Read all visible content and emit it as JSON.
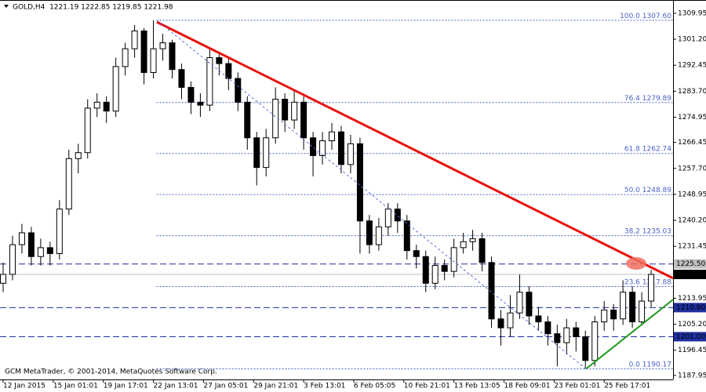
{
  "chart_data": {
    "type": "candlestick",
    "header": "GOLD,H4  1221.19 1222.85 1219.85 1221.98",
    "footer": "GCM MetaTrader, © 2001-2014, MetaQuotes Software Corp.",
    "xlim": [
      -1,
      214
    ],
    "ylim": [
      1186.6,
      1313.1
    ],
    "xticks": [
      {
        "value": 0,
        "label": "12 Jan 2015"
      },
      {
        "value": 16,
        "label": "15 Jan 01:01"
      },
      {
        "value": 32,
        "label": "19 Jan 17:01"
      },
      {
        "value": 48,
        "label": "22 Jan 13:01"
      },
      {
        "value": 64,
        "label": "27 Jan 05:01"
      },
      {
        "value": 80,
        "label": "29 Jan 21:01"
      },
      {
        "value": 96,
        "label": "3 Feb 13:01"
      },
      {
        "value": 112,
        "label": "6 Feb 05:05"
      },
      {
        "value": 128,
        "label": "10 Feb 21:01"
      },
      {
        "value": 144,
        "label": "13 Feb 13:05"
      },
      {
        "value": 160,
        "label": "18 Feb 09:01"
      },
      {
        "value": 176,
        "label": "23 Feb 01:01"
      },
      {
        "value": 192,
        "label": "25 Feb 17:01"
      }
    ],
    "yticks": [
      1309.95,
      {
        "value": 1301.2,
        "label": "1301.20"
      },
      1292.45,
      {
        "value": 1283.7,
        "label": "1283.70"
      },
      1274.95,
      1266.45,
      {
        "value": 1257.7,
        "label": "1257.70"
      },
      1248.95,
      {
        "value": 1240.2,
        "label": "1240.20"
      },
      1231.45,
      1213.95,
      {
        "value": 1205.2,
        "label": "1205.20"
      },
      1196.45,
      1187.95
    ],
    "bull_color": "#ffffff",
    "bear_color": "#000000",
    "x": [
      0,
      3,
      6,
      9,
      12,
      15,
      18,
      21,
      24,
      27,
      30,
      33,
      36,
      39,
      42,
      45,
      48,
      51,
      54,
      57,
      60,
      63,
      66,
      69,
      72,
      75,
      78,
      81,
      84,
      87,
      90,
      93,
      96,
      99,
      102,
      105,
      108,
      111,
      114,
      117,
      120,
      123,
      126,
      129,
      132,
      135,
      138,
      141,
      144,
      147,
      150,
      153,
      156,
      159,
      162,
      165,
      168,
      171,
      174,
      177,
      180,
      183,
      186,
      189,
      192,
      195,
      198,
      201,
      204,
      207
    ],
    "open": [
      1219,
      1222,
      1232,
      1236,
      1228,
      1231,
      1229,
      1244,
      1261,
      1263,
      1278,
      1280,
      1277,
      1292,
      1298,
      1304,
      1290,
      1298,
      1300,
      1291,
      1285,
      1280,
      1279,
      1295,
      1293,
      1288,
      1280,
      1268,
      1258,
      1268,
      1281,
      1274,
      1280,
      1268,
      1262,
      1267,
      1270,
      1259,
      1266,
      1240,
      1232,
      1238,
      1244,
      1240,
      1230,
      1228,
      1219,
      1225,
      1223,
      1231,
      1233,
      1234,
      1226,
      1207,
      1204,
      1209,
      1216,
      1208,
      1206,
      1202,
      1199,
      1204,
      1201,
      1193,
      1206,
      1210,
      1207,
      1216,
      1206,
      1213
    ],
    "high": [
      1226,
      1235,
      1239,
      1238,
      1234,
      1233,
      1247,
      1264,
      1266,
      1281,
      1283,
      1282,
      1295,
      1300,
      1306,
      1305,
      1307.6,
      1303,
      1301,
      1293,
      1287,
      1283,
      1298,
      1297,
      1295,
      1290,
      1282,
      1270,
      1271,
      1285,
      1283,
      1284,
      1282,
      1270,
      1270,
      1273,
      1272,
      1269,
      1268,
      1242,
      1241,
      1246,
      1246,
      1242,
      1232,
      1230,
      1228,
      1227,
      1234,
      1236,
      1237,
      1236,
      1228,
      1210,
      1215,
      1222,
      1218,
      1211,
      1208,
      1205,
      1207,
      1206,
      1203,
      1208,
      1213,
      1212,
      1220,
      1218,
      1216,
      1223.5
    ],
    "low": [
      1216,
      1220,
      1229,
      1225,
      1225,
      1225,
      1227,
      1242,
      1256,
      1261,
      1275,
      1273,
      1275,
      1289,
      1295,
      1286,
      1288,
      1294,
      1288,
      1281,
      1276,
      1275,
      1277,
      1289,
      1284,
      1277,
      1264,
      1252,
      1255,
      1266,
      1270,
      1271,
      1264,
      1255,
      1259,
      1264,
      1256,
      1256,
      1229,
      1229,
      1230,
      1235,
      1236,
      1227,
      1224,
      1216,
      1217,
      1220,
      1221,
      1229,
      1230,
      1223,
      1204,
      1198,
      1201,
      1207,
      1205,
      1203,
      1198,
      1191,
      1195,
      1196,
      1190.17,
      1191,
      1203,
      1203,
      1205,
      1204,
      1205,
      1211
    ],
    "close": [
      1222,
      1232,
      1236,
      1228,
      1231,
      1229,
      1244,
      1261,
      1263,
      1278,
      1280,
      1277,
      1292,
      1298,
      1304,
      1290,
      1298,
      1300,
      1291,
      1285,
      1280,
      1279,
      1295,
      1293,
      1288,
      1280,
      1268,
      1258,
      1268,
      1281,
      1274,
      1280,
      1268,
      1262,
      1267,
      1270,
      1259,
      1266,
      1240,
      1232,
      1238,
      1244,
      1240,
      1230,
      1228,
      1219,
      1225,
      1223,
      1231,
      1233,
      1234,
      1226,
      1207,
      1204,
      1209,
      1216,
      1208,
      1206,
      1202,
      1199,
      1204,
      1201,
      1193,
      1206,
      1210,
      1207,
      1216,
      1206,
      1213,
      1221.98
    ],
    "fib_levels": [
      {
        "ratio": "100.0",
        "price": 1307.6,
        "price_label": "1307.60"
      },
      {
        "ratio": "76.4",
        "price": 1279.89
      },
      {
        "ratio": "61.8",
        "price": 1262.74
      },
      {
        "ratio": "50.0",
        "price": 1248.89
      },
      {
        "ratio": "38.2",
        "price": 1235.03
      },
      {
        "ratio": "23.6",
        "price": 1217.88
      },
      {
        "ratio": "0.0",
        "price": 1190.17
      }
    ],
    "fib_start": 49,
    "hlines": [
      {
        "value": 1225.5,
        "label": "1225.50",
        "color": "#1f2fa0",
        "box": "#c0c0c0"
      },
      {
        "value": 1221.98,
        "color": "#c0c0c0",
        "box": "#000000"
      },
      {
        "value": 1210.8,
        "label": "1210.80",
        "color": "#1f2fa0",
        "box": "#1f2fa0"
      },
      {
        "value": 1201,
        "label": "1201.00",
        "color": "#1f2fa0",
        "box": "#1f2fa0"
      }
    ],
    "trendlines": [
      {
        "x": [
          49.1,
          214
        ],
        "y": [
          1307.0,
          1220.7
        ],
        "color": "#e8130e",
        "width": 3
      },
      {
        "x": [
          186.2,
          214
        ],
        "y": [
          1190.17,
          1213.5
        ],
        "color": "#1e9a1e",
        "width": 2
      },
      {
        "x": [
          49.1,
          186.2
        ],
        "y": [
          1307.6,
          1190.17
        ],
        "color": "#5a6fd0",
        "width": 1,
        "dash": true
      }
    ]
  }
}
